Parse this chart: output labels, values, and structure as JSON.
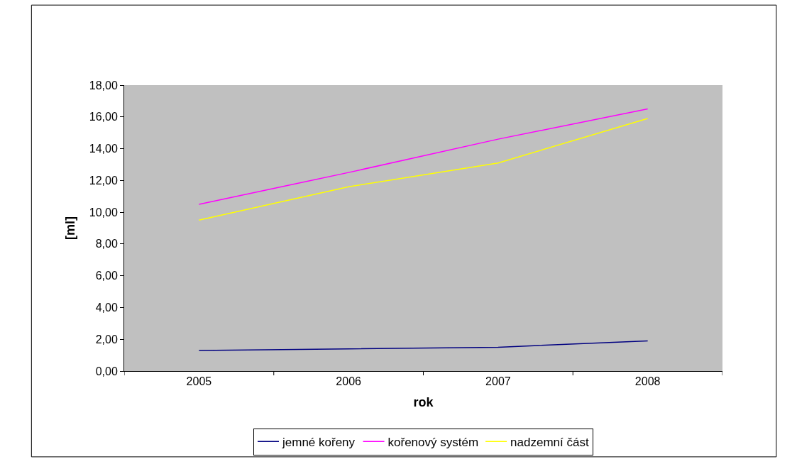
{
  "chart_data": {
    "type": "line",
    "xlabel": "rok",
    "ylabel": "[ml]",
    "categories": [
      "2005",
      "2006",
      "2007",
      "2008"
    ],
    "series": [
      {
        "name": "jemné kořeny",
        "color": "#000080",
        "values": [
          1.3,
          1.4,
          1.5,
          1.9
        ]
      },
      {
        "name": "kořenový systém",
        "color": "#ff00ff",
        "values": [
          10.5,
          12.5,
          14.6,
          16.5
        ]
      },
      {
        "name": "nadzemní část",
        "color": "#ffff00",
        "values": [
          9.5,
          11.6,
          13.1,
          15.9
        ]
      }
    ],
    "ylim": [
      0,
      18
    ],
    "yticks": [
      {
        "value": 0,
        "label": "0,00"
      },
      {
        "value": 2,
        "label": "2,00"
      },
      {
        "value": 4,
        "label": "4,00"
      },
      {
        "value": 6,
        "label": "6,00"
      },
      {
        "value": 8,
        "label": "8,00"
      },
      {
        "value": 10,
        "label": "10,00"
      },
      {
        "value": 12,
        "label": "12,00"
      },
      {
        "value": 14,
        "label": "14,00"
      },
      {
        "value": 16,
        "label": "16,00"
      },
      {
        "value": 18,
        "label": "18,00"
      }
    ],
    "grid": false,
    "legend": "bottom",
    "marker": "none",
    "line_style": "solid"
  }
}
